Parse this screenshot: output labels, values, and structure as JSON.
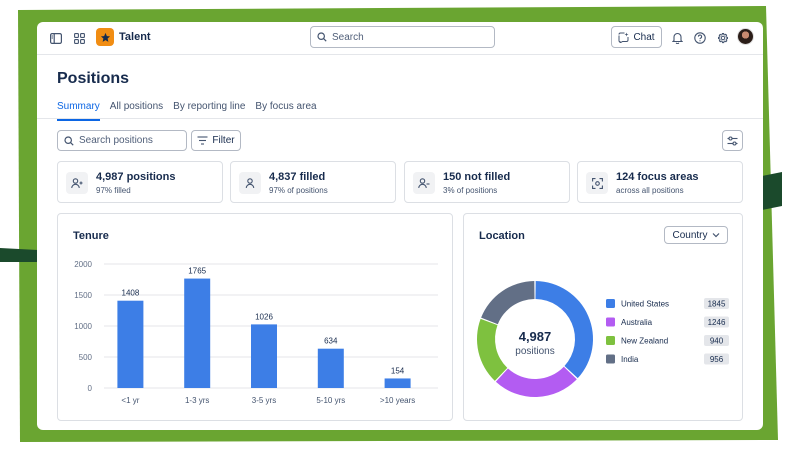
{
  "header": {
    "app_name": "Talent",
    "search_placeholder": "Search",
    "chat_label": "Chat",
    "icons": [
      "sidebar-toggle-icon",
      "app-switcher-icon",
      "star-logo-icon",
      "search-icon",
      "chat-sparkle-icon",
      "bell-icon",
      "help-icon",
      "gear-icon",
      "avatar"
    ]
  },
  "page": {
    "title": "Positions",
    "tabs": [
      {
        "label": "Summary",
        "active": true
      },
      {
        "label": "All positions",
        "active": false
      },
      {
        "label": "By reporting line",
        "active": false
      },
      {
        "label": "By focus area",
        "active": false
      }
    ]
  },
  "toolbar": {
    "search_placeholder": "Search positions",
    "filter_label": "Filter"
  },
  "stats": [
    {
      "main": "4,987 positions",
      "sub": "97% filled",
      "icon": "person-add-icon"
    },
    {
      "main": "4,837 filled",
      "sub": "97% of positions",
      "icon": "person-icon"
    },
    {
      "main": "150 not filled",
      "sub": "3% of positions",
      "icon": "person-remove-icon"
    },
    {
      "main": "124 focus areas",
      "sub": "across all positions",
      "icon": "focus-icon"
    }
  ],
  "tenure": {
    "title": "Tenure"
  },
  "location": {
    "title": "Location",
    "select_value": "Country",
    "center_value": "4,987",
    "center_label": "positions"
  },
  "colors": {
    "brand_green": "#6aa531",
    "dark_green": "#1b4a2c",
    "accent_blue": "#0c66e4",
    "bar_blue": "#3d7ee6",
    "purple": "#b35cf2",
    "lime": "#7ec13f",
    "gray": "#626f86",
    "logo_orange": "#f18d13"
  },
  "chart_data": [
    {
      "type": "bar",
      "title": "Tenure",
      "categories": [
        "<1 yr",
        "1-3 yrs",
        "3-5 yrs",
        "5-10 yrs",
        ">10 years"
      ],
      "values": [
        1408,
        1765,
        1026,
        634,
        154
      ],
      "ylim": [
        0,
        2000
      ],
      "yticks": [
        0,
        500,
        1000,
        1500,
        2000
      ],
      "grid": true,
      "legend": "none"
    },
    {
      "type": "pie",
      "title": "Location",
      "donut": true,
      "labels": [
        "United States",
        "Australia",
        "New Zealand",
        "India"
      ],
      "values": [
        1845,
        1246,
        940,
        956
      ],
      "colors": [
        "#3d7ee6",
        "#b35cf2",
        "#7ec13f",
        "#626f86"
      ],
      "legend": "right"
    }
  ]
}
